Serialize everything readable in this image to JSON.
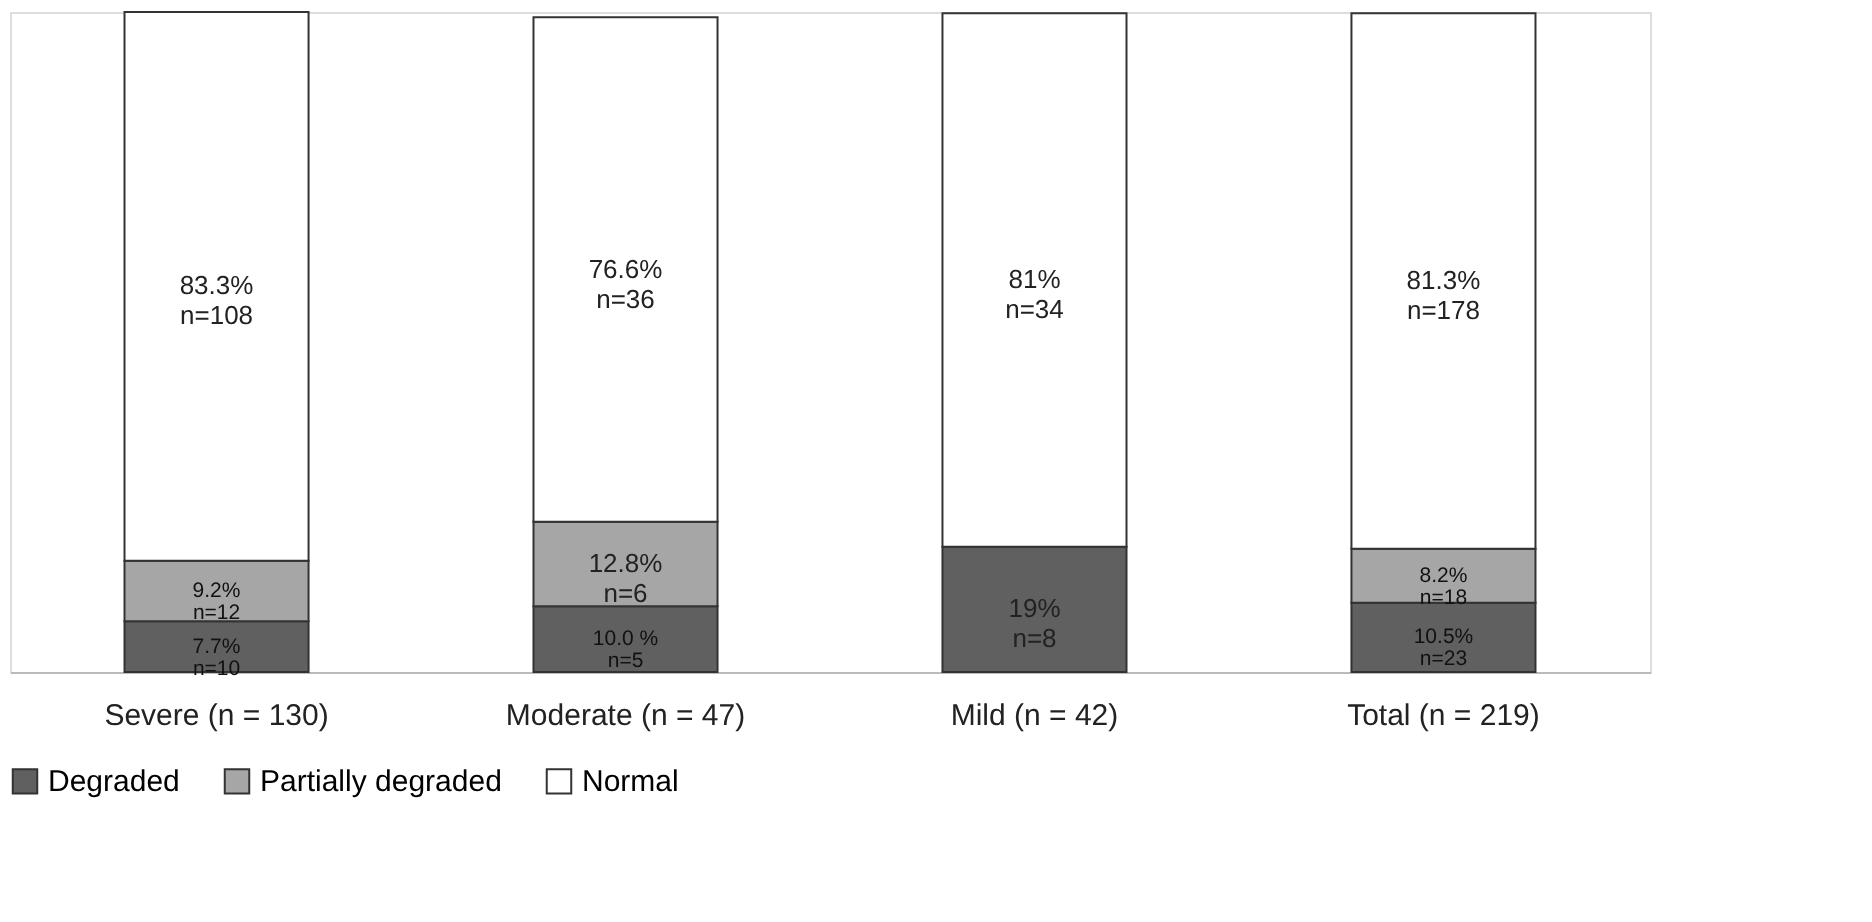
{
  "chart_data": {
    "type": "bar",
    "stacked": true,
    "categories": [
      "Severe (n = 130)",
      "Moderate (n = 47)",
      "Mild (n = 42)",
      "Total (n = 219)"
    ],
    "series": [
      {
        "name": "Degraded",
        "color": "#606060",
        "values": [
          7.7,
          10.0,
          19,
          10.5
        ],
        "value_labels": [
          "7.7%\nn=10",
          "10.0 %\nn=5",
          "19%\nn=8",
          "10.5%\nn=23"
        ]
      },
      {
        "name": "Partially degraded",
        "color": "#a6a6a6",
        "values": [
          9.2,
          12.8,
          null,
          8.2
        ],
        "value_labels": [
          "9.2%\nn=12",
          "12.8%\nn=6",
          null,
          "8.2%\nn=18"
        ]
      },
      {
        "name": "Normal",
        "color": "#ffffff",
        "values": [
          83.3,
          76.6,
          81,
          81.3
        ],
        "value_labels": [
          "83.3%\nn=108",
          "76.6%\nn=36",
          "81%\nn=34",
          "81.3%\nn=178"
        ]
      }
    ],
    "legend": "bottom"
  }
}
